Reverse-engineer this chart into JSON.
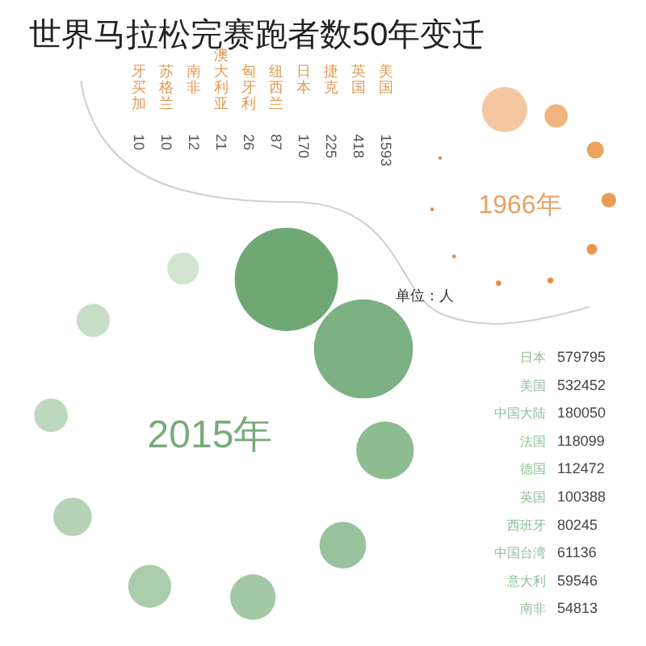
{
  "chart_data": [
    {
      "type": "other",
      "title": "世界马拉松完赛跑者数50年变迁",
      "subtitle": "1966年",
      "annotations": [
        "单位：人"
      ],
      "data_labels": true,
      "categories": [
        "牙买加",
        "苏格兰",
        "南非",
        "澳大利亚",
        "匈牙利",
        "纽西兰",
        "日本",
        "捷克",
        "英国",
        "美国"
      ],
      "values": [
        10,
        10,
        12,
        21,
        26,
        87,
        170,
        225,
        418,
        1593
      ],
      "colors": [
        "#e8893c",
        "#e8893c",
        "#e8893c",
        "#e8893c",
        "#e98d42",
        "#ea9448",
        "#eb9a52",
        "#eda35e",
        "#f0b47c",
        "#f5c7a0"
      ]
    },
    {
      "type": "other",
      "subtitle": "2015年",
      "data_labels": true,
      "categories": [
        "日本",
        "美国",
        "中国大陆",
        "法国",
        "德国",
        "英国",
        "西班牙",
        "中国台湾",
        "意大利",
        "南非"
      ],
      "values": [
        579795,
        532452,
        180050,
        118099,
        112472,
        100388,
        80245,
        61136,
        59546,
        54813
      ],
      "colors": [
        "#6fa874",
        "#7db083",
        "#8dbc91",
        "#98c29b",
        "#a2c8a4",
        "#aacdab",
        "#b4d3b5",
        "#bcd8bd",
        "#c6dec6",
        "#d0e4d0"
      ]
    }
  ]
}
